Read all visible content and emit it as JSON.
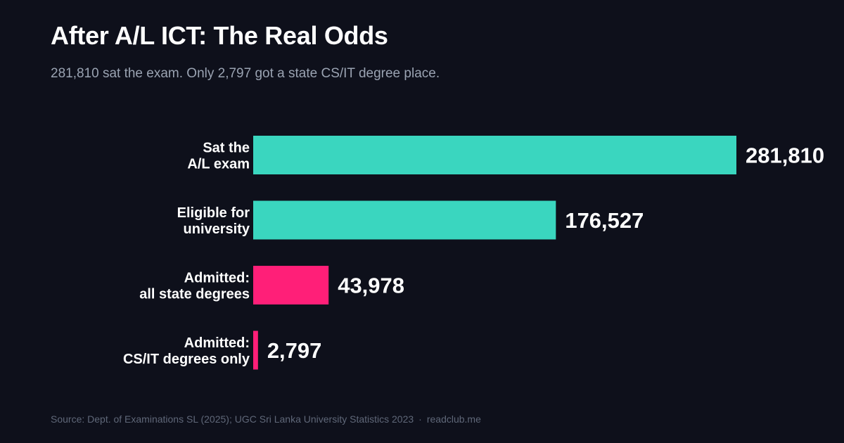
{
  "title": "After A/L ICT: The Real Odds",
  "subtitle": "281,810 sat the exam. Only 2,797 got a state CS/IT degree place.",
  "footer": {
    "source": "Source: Dept. of Examinations SL (2025); UGC Sri Lanka University Statistics 2023",
    "separator": "·",
    "site": "readclub.me"
  },
  "colors": {
    "background": "#0e101b",
    "teal": "#3ad6bf",
    "pink": "#ff1f78",
    "text": "#ffffff",
    "subtitle": "#9aa3b2",
    "footer": "#5f6778"
  },
  "chart_data": {
    "type": "bar",
    "orientation": "horizontal",
    "categories": [
      [
        "Sat the",
        "A/L exam"
      ],
      [
        "Eligible for",
        "university"
      ],
      [
        "Admitted:",
        "all state degrees"
      ],
      [
        "Admitted:",
        "CS/IT degrees only"
      ]
    ],
    "values": [
      281810,
      176527,
      43978,
      2797
    ],
    "value_labels": [
      "281,810",
      "176,527",
      "43,978",
      "2,797"
    ],
    "bar_colors": [
      "#3ad6bf",
      "#3ad6bf",
      "#ff1f78",
      "#ff1f78"
    ],
    "title": "After A/L ICT: The Real Odds",
    "xlabel": "",
    "ylabel": "",
    "grid": false,
    "legend": "none"
  }
}
